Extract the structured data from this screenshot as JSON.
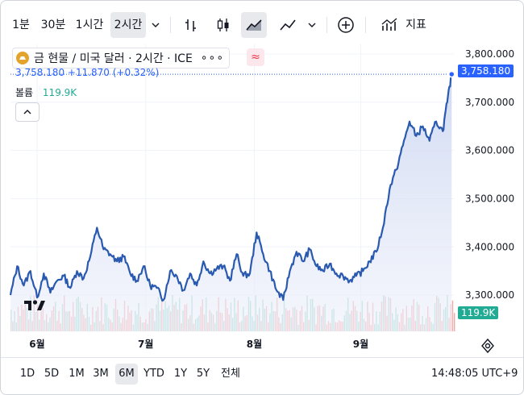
{
  "toolbar": {
    "intervals": [
      "1분",
      "30분",
      "1시간",
      "2시간"
    ],
    "active_interval": "2시간",
    "indicators_label": "지표",
    "icons": [
      "chevron-down-icon",
      "bar-chart-icon",
      "candlestick-icon",
      "area-chart-icon",
      "line-chart-icon",
      "chevron-down-icon",
      "add-circle-icon",
      "indicators-icon"
    ]
  },
  "legend": {
    "title": "금 현물 / 미국 달러 · 2시간 · ICE",
    "price_line": "3,758.180 +11.870 (+0.32%)",
    "volume_label": "볼륨",
    "volume_value": "119.9K",
    "accent": "#2962ff",
    "symbol_icon_color": "#e3a32c"
  },
  "price_axis": {
    "last_price_label": "3,758.180",
    "volume_label": "119.9K"
  },
  "bottom": {
    "ranges": [
      "1D",
      "5D",
      "1M",
      "3M",
      "6M",
      "YTD",
      "1Y",
      "5Y",
      "전체"
    ],
    "active_range": "6M",
    "clock": "14:48:05 UTC+9"
  },
  "chart_data": {
    "type": "area",
    "title": "금 현물 / 미국 달러 · 2시간 · ICE",
    "x_labels": [
      "6월",
      "7월",
      "8월",
      "9월"
    ],
    "y_ticks": [
      3300,
      3400,
      3500,
      3600,
      3700,
      3800
    ],
    "y_tick_labels": [
      "3,300.000",
      "3,400.000",
      "3,500.000",
      "3,600.000",
      "3,700.000",
      "3,800.000"
    ],
    "ylim": [
      3225,
      3820
    ],
    "x_range": [
      0,
      100
    ],
    "x_label_positions": [
      6,
      30.5,
      55,
      79
    ],
    "series": [
      {
        "color": "#2a5ab0",
        "x": [
          0,
          1.5,
          3,
          4.5,
          6,
          7.5,
          9,
          10.5,
          12,
          13.5,
          15,
          16.5,
          18,
          19.5,
          21,
          22.5,
          24,
          25.5,
          27,
          28.5,
          30,
          31.5,
          33,
          34.5,
          36,
          37.5,
          39,
          40.5,
          42,
          43.5,
          45,
          46.5,
          48,
          49.5,
          51,
          52.5,
          54,
          55.5,
          57,
          58.5,
          60,
          61.5,
          63,
          64.5,
          66,
          67.5,
          69,
          70.5,
          72,
          73.5,
          75,
          76.5,
          78,
          79.5,
          81,
          82.5,
          84,
          85.5,
          87,
          88.5,
          90,
          91.5,
          93,
          94.5,
          96,
          97.5,
          98.5,
          99.5
        ],
        "y": [
          3300,
          3360,
          3320,
          3350,
          3295,
          3345,
          3305,
          3330,
          3340,
          3315,
          3350,
          3335,
          3380,
          3440,
          3395,
          3385,
          3370,
          3380,
          3345,
          3330,
          3360,
          3320,
          3315,
          3290,
          3350,
          3340,
          3310,
          3345,
          3320,
          3370,
          3345,
          3355,
          3360,
          3330,
          3385,
          3340,
          3345,
          3430,
          3385,
          3350,
          3310,
          3290,
          3350,
          3390,
          3370,
          3395,
          3360,
          3350,
          3365,
          3345,
          3340,
          3330,
          3340,
          3350,
          3370,
          3390,
          3440,
          3520,
          3560,
          3610,
          3660,
          3630,
          3650,
          3620,
          3660,
          3640,
          3700,
          3758
        ]
      }
    ],
    "volume_series": {
      "colors": {
        "up": "#9fd6cc",
        "down": "#f4a9a9"
      },
      "last_value": "119.9K"
    },
    "grid": true,
    "legend": "top-left"
  }
}
